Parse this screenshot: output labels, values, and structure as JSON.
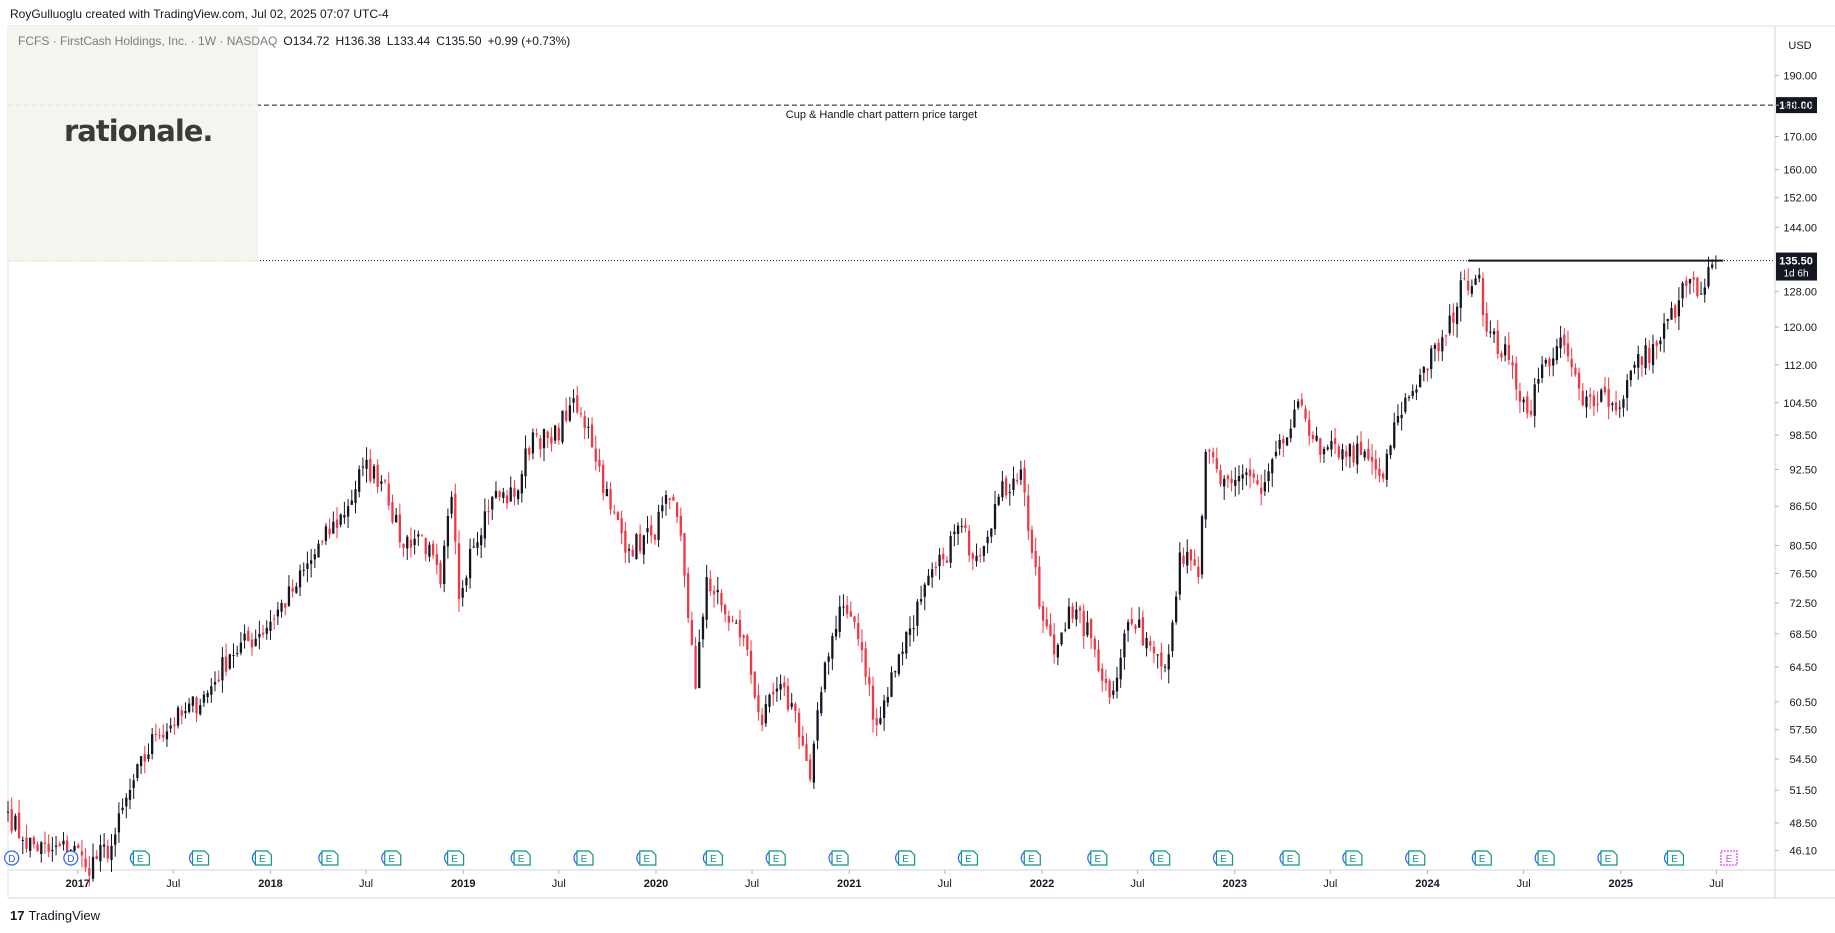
{
  "header": {
    "credit": "RoyGulluoglu created with TradingView.com, Jul 02, 2025 07:07 UTC-4",
    "symbol_line": "FCFS · FirstCash Holdings, Inc. · 1W · NASDAQ",
    "open": "O134.72",
    "high": "H136.38",
    "low": "L133.44",
    "close": "C135.50",
    "change": "+0.99 (+0.73%)"
  },
  "watermark": {
    "text": "rationale."
  },
  "footer": {
    "brand": "TradingView",
    "brand_mark": "17"
  },
  "colors": {
    "up": "#131722",
    "down": "#f23645",
    "grid": "#f0f3fa",
    "axis_text": "#131722",
    "dividend": "#2962ff",
    "earnings": "#089981",
    "earnings_future": "#e040fb"
  },
  "chart_data": {
    "type": "candlestick",
    "title": "FCFS · FirstCash Holdings, Inc. · 1W · NASDAQ",
    "scale": "log",
    "currency_label": "USD",
    "ylim": [
      44.5,
      208
    ],
    "y_ticks": [
      "46.10",
      "48.50",
      "51.50",
      "54.50",
      "57.50",
      "60.50",
      "64.50",
      "68.50",
      "72.50",
      "76.50",
      "80.50",
      "86.50",
      "92.50",
      "98.50",
      "104.50",
      "112.00",
      "120.00",
      "128.00",
      "144.00",
      "152.00",
      "160.00",
      "170.00",
      "180.00",
      "190.00"
    ],
    "x_ticks": [
      "2017",
      "Jul",
      "2018",
      "Jul",
      "2019",
      "Jul",
      "2020",
      "Jul",
      "2021",
      "Jul",
      "2022",
      "Jul",
      "2023",
      "Jul",
      "2024",
      "Jul",
      "2025",
      "Jul"
    ],
    "x_tick_dates": [
      "2017-01-01",
      "2017-07-01",
      "2018-01-01",
      "2018-07-01",
      "2019-01-01",
      "2019-07-01",
      "2020-01-01",
      "2020-07-01",
      "2021-01-01",
      "2021-07-01",
      "2022-01-01",
      "2022-07-01",
      "2023-01-01",
      "2023-07-01",
      "2024-01-01",
      "2024-07-01",
      "2025-01-01",
      "2025-07-01"
    ],
    "x_range": [
      "2016-08-22",
      "2025-10-20"
    ],
    "last_price": {
      "value": 135.5,
      "label": "135.50",
      "countdown": "1d 6h"
    },
    "price_target": {
      "value": 180.0,
      "label": "180.00",
      "annotation": "Cup & Handle chart pattern price target"
    },
    "resistance": {
      "value": 135.5,
      "start": "2024-03-18",
      "end": "2025-07-14"
    },
    "anchor_closes": [
      [
        "2016-08-22",
        49.5
      ],
      [
        "2016-09-19",
        47.0
      ],
      [
        "2016-11-07",
        46.0
      ],
      [
        "2016-12-26",
        46.5
      ],
      [
        "2017-01-16",
        44.7
      ],
      [
        "2017-03-06",
        46.5
      ],
      [
        "2017-04-10",
        51.5
      ],
      [
        "2017-05-29",
        57.0
      ],
      [
        "2017-07-17",
        59.0
      ],
      [
        "2017-09-04",
        61.5
      ],
      [
        "2017-10-16",
        66.0
      ],
      [
        "2017-12-11",
        68.5
      ],
      [
        "2018-02-12",
        74.0
      ],
      [
        "2018-04-09",
        81.0
      ],
      [
        "2018-05-28",
        86.5
      ],
      [
        "2018-06-25",
        93.0
      ],
      [
        "2018-08-06",
        90.5
      ],
      [
        "2018-09-03",
        81.0
      ],
      [
        "2018-10-15",
        82.0
      ],
      [
        "2018-11-19",
        75.0
      ],
      [
        "2018-12-10",
        88.0
      ],
      [
        "2018-12-24",
        73.0
      ],
      [
        "2019-01-14",
        80.0
      ],
      [
        "2019-02-25",
        88.0
      ],
      [
        "2019-04-08",
        88.0
      ],
      [
        "2019-05-13",
        99.0
      ],
      [
        "2019-06-17",
        97.0
      ],
      [
        "2019-07-22",
        104.0
      ],
      [
        "2019-08-26",
        100.0
      ],
      [
        "2019-10-07",
        86.0
      ],
      [
        "2019-11-11",
        80.0
      ],
      [
        "2019-12-23",
        82.0
      ],
      [
        "2020-01-27",
        87.5
      ],
      [
        "2020-02-17",
        82.0
      ],
      [
        "2020-03-16",
        62.0
      ],
      [
        "2020-04-06",
        76.0
      ],
      [
        "2020-05-11",
        71.0
      ],
      [
        "2020-06-15",
        68.0
      ],
      [
        "2020-07-20",
        58.0
      ],
      [
        "2020-08-17",
        62.0
      ],
      [
        "2020-09-21",
        59.5
      ],
      [
        "2020-10-19",
        52.5
      ],
      [
        "2020-11-16",
        65.0
      ],
      [
        "2020-12-14",
        72.0
      ],
      [
        "2021-01-11",
        70.0
      ],
      [
        "2021-02-22",
        58.0
      ],
      [
        "2021-04-05",
        66.0
      ],
      [
        "2021-05-17",
        73.0
      ],
      [
        "2021-06-28",
        78.5
      ],
      [
        "2021-07-26",
        83.5
      ],
      [
        "2021-08-30",
        79.0
      ],
      [
        "2021-10-11",
        88.0
      ],
      [
        "2021-11-08",
        91.0
      ],
      [
        "2021-11-22",
        92.5
      ],
      [
        "2021-12-27",
        72.0
      ],
      [
        "2022-01-24",
        66.0
      ],
      [
        "2022-02-21",
        72.0
      ],
      [
        "2022-04-04",
        68.0
      ],
      [
        "2022-05-09",
        61.0
      ],
      [
        "2022-06-13",
        70.0
      ],
      [
        "2022-07-18",
        68.0
      ],
      [
        "2022-08-08",
        66.0
      ],
      [
        "2022-08-29",
        66.0
      ],
      [
        "2022-09-19",
        79.5
      ],
      [
        "2022-10-24",
        76.0
      ],
      [
        "2022-11-07",
        95.5
      ],
      [
        "2022-12-05",
        90.0
      ],
      [
        "2023-01-23",
        92.0
      ],
      [
        "2023-02-20",
        88.5
      ],
      [
        "2023-04-03",
        97.0
      ],
      [
        "2023-05-08",
        104.0
      ],
      [
        "2023-06-12",
        95.0
      ],
      [
        "2023-07-24",
        96.0
      ],
      [
        "2023-08-28",
        95.0
      ],
      [
        "2023-10-09",
        91.0
      ],
      [
        "2023-11-06",
        102.0
      ],
      [
        "2023-12-18",
        110.0
      ],
      [
        "2024-02-05",
        118.0
      ],
      [
        "2024-03-11",
        131.0
      ],
      [
        "2024-04-08",
        132.0
      ],
      [
        "2024-04-22",
        119.0
      ],
      [
        "2024-06-03",
        113.0
      ],
      [
        "2024-07-08",
        102.5
      ],
      [
        "2024-08-12",
        113.0
      ],
      [
        "2024-09-16",
        116.0
      ],
      [
        "2024-10-21",
        104.0
      ],
      [
        "2024-11-25",
        107.0
      ],
      [
        "2024-12-23",
        103.0
      ],
      [
        "2025-01-27",
        112.0
      ],
      [
        "2025-03-10",
        116.0
      ],
      [
        "2025-04-21",
        126.0
      ],
      [
        "2025-05-12",
        131.0
      ],
      [
        "2025-05-26",
        127.0
      ],
      [
        "2025-06-09",
        129.0
      ],
      [
        "2025-06-23",
        134.5
      ],
      [
        "2025-06-30",
        135.5
      ]
    ],
    "events": {
      "dividends": [
        "2016-08-29",
        "2016-12-19",
        "2017-04-24",
        "2017-08-14",
        "2017-12-11",
        "2018-04-16",
        "2018-08-13",
        "2018-12-10",
        "2019-04-15",
        "2019-08-12",
        "2019-12-09",
        "2020-04-13",
        "2020-08-10",
        "2020-12-07",
        "2021-04-12",
        "2021-08-09",
        "2021-12-06",
        "2022-04-11",
        "2022-08-08",
        "2022-12-05",
        "2023-04-10",
        "2023-08-07",
        "2023-12-04",
        "2024-04-08",
        "2024-08-05",
        "2024-12-02",
        "2025-04-07"
      ],
      "earnings": [
        "2017-04-24",
        "2017-08-14",
        "2017-12-11",
        "2018-04-16",
        "2018-08-13",
        "2018-12-10",
        "2019-04-15",
        "2019-08-12",
        "2019-12-09",
        "2020-04-13",
        "2020-08-10",
        "2020-12-07",
        "2021-04-12",
        "2021-08-09",
        "2021-12-06",
        "2022-04-11",
        "2022-08-08",
        "2022-12-05",
        "2023-04-10",
        "2023-08-07",
        "2023-12-04",
        "2024-04-08",
        "2024-08-05",
        "2024-12-02",
        "2025-04-07"
      ],
      "upcoming_earnings": [
        "2025-07-21"
      ]
    }
  }
}
